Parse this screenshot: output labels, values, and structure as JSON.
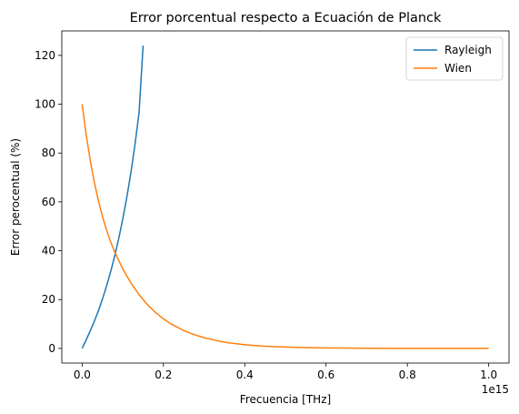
{
  "chart_data": {
    "type": "line",
    "title": "Error porcentual respecto a Ecuación de Planck",
    "xlabel": "Frecuencia [THz]",
    "ylabel": "Error perocentual (%)",
    "x_offset_label": "1e15",
    "xlim": [
      -0.05,
      1.05
    ],
    "ylim": [
      -6,
      130
    ],
    "xticks": [
      0.0,
      0.2,
      0.4,
      0.6,
      0.8,
      1.0
    ],
    "xtick_labels": [
      "0.0",
      "0.2",
      "0.4",
      "0.6",
      "0.8",
      "1.0"
    ],
    "yticks": [
      0,
      20,
      40,
      60,
      80,
      100,
      120
    ],
    "ytick_labels": [
      "0",
      "20",
      "40",
      "60",
      "80",
      "100",
      "120"
    ],
    "grid": false,
    "legend": "top-right",
    "series": [
      {
        "name": "Rayleigh",
        "color": "#1f77b4",
        "x": [
          0.0,
          0.01,
          0.02,
          0.03,
          0.04,
          0.05,
          0.06,
          0.07,
          0.08,
          0.09,
          0.1,
          0.11,
          0.12,
          0.13,
          0.14,
          0.15
        ],
        "y": [
          0.0,
          3.5,
          7.2,
          11.1,
          15.4,
          20.2,
          25.5,
          31.3,
          37.8,
          45.0,
          53.0,
          62.0,
          72.0,
          83.5,
          96.5,
          124.0
        ]
      },
      {
        "name": "Wien",
        "color": "#ff7f0e",
        "x": [
          0.0,
          0.01,
          0.02,
          0.03,
          0.04,
          0.05,
          0.06,
          0.07,
          0.08,
          0.1,
          0.12,
          0.14,
          0.16,
          0.18,
          0.2,
          0.22,
          0.25,
          0.28,
          0.3,
          0.33,
          0.36,
          0.4,
          0.45,
          0.5,
          0.55,
          0.6,
          0.7,
          0.8,
          0.9,
          1.0
        ],
        "y": [
          100.0,
          87.5,
          76.9,
          68.0,
          60.5,
          54.0,
          48.5,
          43.7,
          39.5,
          32.5,
          26.8,
          22.0,
          18.0,
          14.8,
          12.1,
          9.9,
          7.3,
          5.4,
          4.4,
          3.2,
          2.3,
          1.5,
          0.9,
          0.55,
          0.33,
          0.2,
          0.07,
          0.03,
          0.01,
          0.0
        ]
      }
    ]
  }
}
